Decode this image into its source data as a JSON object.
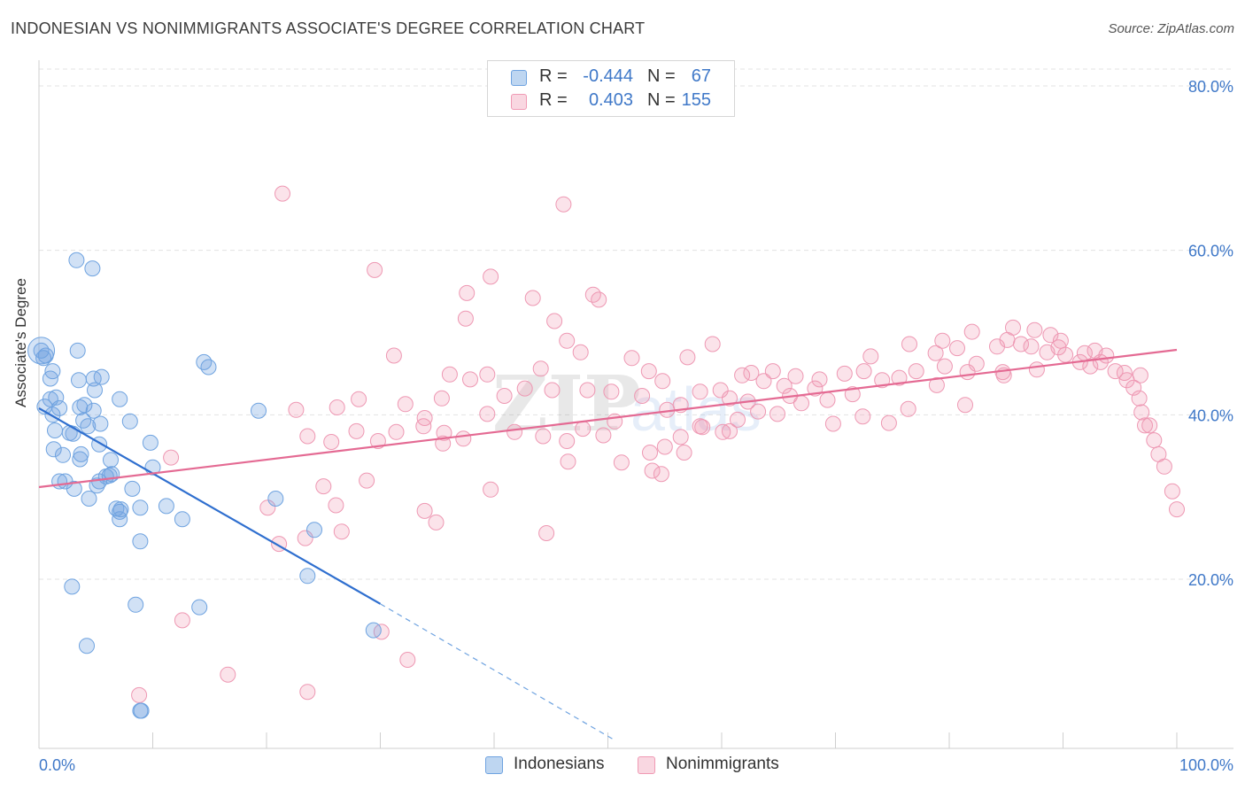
{
  "title": "INDONESIAN VS NONIMMIGRANTS ASSOCIATE'S DEGREE CORRELATION CHART",
  "source": "Source: ZipAtlas.com",
  "watermark": {
    "zip": "ZIP",
    "atlas": "atlas"
  },
  "legend": {
    "rows": [
      {
        "r_label": "R =",
        "r_value": "-0.444",
        "n_label": "N =",
        "n_value": "67",
        "color": "#6fa3e0"
      },
      {
        "r_label": "R =",
        "r_value": "0.403",
        "n_label": "N =",
        "n_value": "155",
        "color": "#f09ab4"
      }
    ]
  },
  "bottom_legend": [
    {
      "label": "Indonesians",
      "color": "#6fa3e0"
    },
    {
      "label": "Nonimmigrants",
      "color": "#f09ab4"
    }
  ],
  "chart_data": {
    "type": "scatter",
    "title": "INDONESIAN VS NONIMMIGRANTS ASSOCIATE'S DEGREE CORRELATION CHART",
    "xlabel": "",
    "ylabel": "Associate's Degree",
    "xlim": [
      0,
      100
    ],
    "ylim": [
      0,
      82
    ],
    "x_tick_labels": [
      "0.0%",
      "100.0%"
    ],
    "y_ticks": [
      20,
      40,
      60,
      80
    ],
    "y_tick_labels": [
      "20.0%",
      "40.0%",
      "60.0%",
      "80.0%"
    ],
    "grid": true,
    "legend_position": "top-center",
    "series": [
      {
        "name": "Indonesians",
        "color": "#6fa3e0",
        "trend": {
          "x0": 0,
          "y0": 40.8,
          "x1": 30,
          "y1": 17.0,
          "dashed_to_x": 50.5,
          "dashed_to_y": 0.5
        },
        "points": [
          [
            0.2,
            47.8
          ],
          [
            0.4,
            46.9
          ],
          [
            0.6,
            47.2
          ],
          [
            1.2,
            45.3
          ],
          [
            1.0,
            44.4
          ],
          [
            3.4,
            47.8
          ],
          [
            3.3,
            58.8
          ],
          [
            4.7,
            57.8
          ],
          [
            1.5,
            42.1
          ],
          [
            1.0,
            41.9
          ],
          [
            1.8,
            40.8
          ],
          [
            1.2,
            40.0
          ],
          [
            3.5,
            44.2
          ],
          [
            4.8,
            44.4
          ],
          [
            5.5,
            44.6
          ],
          [
            4.9,
            43.0
          ],
          [
            3.6,
            40.9
          ],
          [
            4.0,
            41.2
          ],
          [
            4.8,
            40.5
          ],
          [
            7.1,
            41.9
          ],
          [
            8.0,
            39.2
          ],
          [
            3.9,
            39.3
          ],
          [
            4.3,
            38.6
          ],
          [
            5.4,
            38.9
          ],
          [
            1.4,
            38.1
          ],
          [
            2.7,
            37.8
          ],
          [
            5.3,
            36.4
          ],
          [
            9.8,
            36.6
          ],
          [
            1.3,
            35.8
          ],
          [
            2.1,
            35.1
          ],
          [
            3.7,
            35.2
          ],
          [
            3.6,
            34.6
          ],
          [
            6.3,
            34.5
          ],
          [
            10.0,
            33.6
          ],
          [
            6.2,
            32.6
          ],
          [
            6.4,
            32.8
          ],
          [
            1.8,
            31.9
          ],
          [
            2.3,
            31.9
          ],
          [
            3.1,
            31.0
          ],
          [
            5.1,
            31.4
          ],
          [
            5.3,
            31.9
          ],
          [
            8.2,
            31.0
          ],
          [
            4.4,
            29.8
          ],
          [
            6.8,
            28.6
          ],
          [
            7.1,
            28.2
          ],
          [
            8.9,
            28.7
          ],
          [
            11.2,
            28.9
          ],
          [
            7.1,
            27.3
          ],
          [
            12.6,
            27.3
          ],
          [
            20.8,
            29.8
          ],
          [
            24.2,
            26.0
          ],
          [
            8.9,
            24.6
          ],
          [
            2.9,
            19.1
          ],
          [
            23.6,
            20.4
          ],
          [
            8.5,
            16.9
          ],
          [
            14.1,
            16.6
          ],
          [
            29.4,
            13.8
          ],
          [
            4.2,
            11.9
          ],
          [
            8.9,
            4.0
          ],
          [
            9.0,
            4.0
          ],
          [
            14.5,
            46.4
          ],
          [
            14.9,
            45.8
          ],
          [
            19.3,
            40.5
          ],
          [
            7.2,
            28.5
          ],
          [
            5.9,
            32.5
          ],
          [
            3.0,
            37.7
          ],
          [
            0.5,
            41.0
          ]
        ]
      },
      {
        "name": "Nonimmigrants",
        "color": "#f09ab4",
        "trend": {
          "x0": 0,
          "y0": 31.2,
          "x1": 100,
          "y1": 47.9
        },
        "points": [
          [
            21.4,
            66.9
          ],
          [
            46.1,
            65.6
          ],
          [
            29.5,
            57.6
          ],
          [
            39.7,
            56.8
          ],
          [
            37.6,
            54.8
          ],
          [
            43.4,
            54.2
          ],
          [
            48.7,
            54.6
          ],
          [
            49.2,
            54.0
          ],
          [
            37.5,
            51.7
          ],
          [
            45.3,
            51.4
          ],
          [
            46.4,
            49.0
          ],
          [
            31.2,
            47.2
          ],
          [
            47.6,
            47.6
          ],
          [
            52.1,
            46.9
          ],
          [
            57.0,
            47.0
          ],
          [
            59.2,
            48.6
          ],
          [
            36.1,
            44.9
          ],
          [
            39.4,
            44.9
          ],
          [
            44.1,
            45.6
          ],
          [
            48.2,
            43.0
          ],
          [
            53.6,
            45.3
          ],
          [
            54.8,
            44.1
          ],
          [
            55.2,
            40.6
          ],
          [
            58.1,
            42.8
          ],
          [
            59.9,
            43.0
          ],
          [
            61.8,
            44.8
          ],
          [
            62.6,
            45.1
          ],
          [
            63.7,
            44.1
          ],
          [
            64.5,
            45.3
          ],
          [
            65.5,
            43.5
          ],
          [
            66.5,
            44.7
          ],
          [
            68.2,
            43.2
          ],
          [
            67.0,
            41.4
          ],
          [
            69.3,
            41.8
          ],
          [
            71.5,
            42.5
          ],
          [
            72.5,
            45.3
          ],
          [
            74.1,
            44.2
          ],
          [
            75.6,
            44.5
          ],
          [
            77.1,
            45.3
          ],
          [
            78.8,
            47.5
          ],
          [
            79.6,
            45.9
          ],
          [
            78.9,
            43.6
          ],
          [
            80.7,
            48.1
          ],
          [
            81.6,
            45.2
          ],
          [
            82.4,
            46.2
          ],
          [
            84.2,
            48.3
          ],
          [
            84.7,
            45.2
          ],
          [
            85.6,
            50.6
          ],
          [
            86.3,
            48.6
          ],
          [
            87.2,
            48.3
          ],
          [
            87.5,
            50.3
          ],
          [
            88.6,
            47.6
          ],
          [
            88.9,
            49.7
          ],
          [
            89.8,
            49.0
          ],
          [
            90.2,
            47.3
          ],
          [
            91.5,
            46.4
          ],
          [
            91.9,
            47.5
          ],
          [
            92.8,
            47.8
          ],
          [
            93.3,
            46.4
          ],
          [
            93.8,
            47.2
          ],
          [
            94.6,
            45.3
          ],
          [
            95.4,
            45.1
          ],
          [
            96.2,
            43.3
          ],
          [
            96.7,
            42.0
          ],
          [
            95.6,
            44.2
          ],
          [
            96.9,
            40.3
          ],
          [
            97.6,
            38.7
          ],
          [
            98.0,
            36.9
          ],
          [
            98.4,
            35.2
          ],
          [
            98.9,
            33.7
          ],
          [
            99.6,
            30.7
          ],
          [
            100.0,
            28.5
          ],
          [
            96.8,
            44.8
          ],
          [
            92.4,
            45.9
          ],
          [
            89.6,
            48.2
          ],
          [
            85.1,
            49.1
          ],
          [
            82.0,
            50.1
          ],
          [
            79.4,
            49.0
          ],
          [
            76.5,
            48.6
          ],
          [
            73.1,
            47.1
          ],
          [
            70.8,
            45.0
          ],
          [
            68.6,
            44.3
          ],
          [
            66.0,
            42.3
          ],
          [
            64.9,
            40.1
          ],
          [
            63.2,
            40.4
          ],
          [
            61.4,
            39.4
          ],
          [
            60.1,
            37.9
          ],
          [
            58.1,
            38.6
          ],
          [
            56.4,
            37.3
          ],
          [
            55.0,
            36.1
          ],
          [
            53.7,
            35.4
          ],
          [
            51.2,
            34.2
          ],
          [
            49.6,
            37.5
          ],
          [
            47.8,
            38.3
          ],
          [
            46.4,
            36.8
          ],
          [
            44.3,
            37.4
          ],
          [
            41.8,
            37.9
          ],
          [
            39.4,
            40.1
          ],
          [
            37.3,
            37.1
          ],
          [
            35.6,
            37.8
          ],
          [
            33.8,
            38.6
          ],
          [
            31.4,
            37.9
          ],
          [
            29.8,
            36.8
          ],
          [
            27.9,
            38.0
          ],
          [
            25.7,
            36.7
          ],
          [
            23.6,
            37.4
          ],
          [
            22.6,
            40.6
          ],
          [
            26.2,
            40.9
          ],
          [
            28.1,
            41.9
          ],
          [
            32.2,
            41.3
          ],
          [
            33.9,
            39.6
          ],
          [
            35.4,
            42.0
          ],
          [
            37.9,
            44.3
          ],
          [
            40.9,
            42.3
          ],
          [
            42.7,
            43.2
          ],
          [
            45.1,
            43.0
          ],
          [
            50.3,
            42.8
          ],
          [
            53.0,
            42.3
          ],
          [
            56.4,
            41.2
          ],
          [
            60.7,
            42.0
          ],
          [
            62.3,
            41.6
          ],
          [
            69.8,
            38.9
          ],
          [
            72.4,
            39.8
          ],
          [
            74.7,
            39.0
          ],
          [
            76.4,
            40.7
          ],
          [
            81.4,
            41.2
          ],
          [
            84.8,
            44.8
          ],
          [
            87.7,
            45.5
          ],
          [
            11.6,
            34.8
          ],
          [
            25.0,
            31.3
          ],
          [
            28.8,
            32.0
          ],
          [
            26.1,
            29.0
          ],
          [
            20.1,
            28.7
          ],
          [
            23.4,
            25.0
          ],
          [
            21.1,
            24.3
          ],
          [
            26.6,
            25.8
          ],
          [
            33.9,
            28.3
          ],
          [
            34.9,
            26.9
          ],
          [
            39.7,
            30.9
          ],
          [
            44.6,
            25.6
          ],
          [
            46.5,
            34.3
          ],
          [
            53.9,
            33.2
          ],
          [
            56.7,
            35.4
          ],
          [
            58.3,
            38.5
          ],
          [
            60.7,
            38.0
          ],
          [
            12.6,
            15.0
          ],
          [
            16.6,
            8.4
          ],
          [
            23.6,
            6.3
          ],
          [
            30.1,
            13.6
          ],
          [
            32.4,
            10.2
          ],
          [
            8.8,
            5.9
          ],
          [
            97.2,
            38.7
          ],
          [
            50.6,
            39.2
          ],
          [
            54.7,
            32.8
          ],
          [
            35.5,
            36.5
          ]
        ]
      }
    ]
  }
}
